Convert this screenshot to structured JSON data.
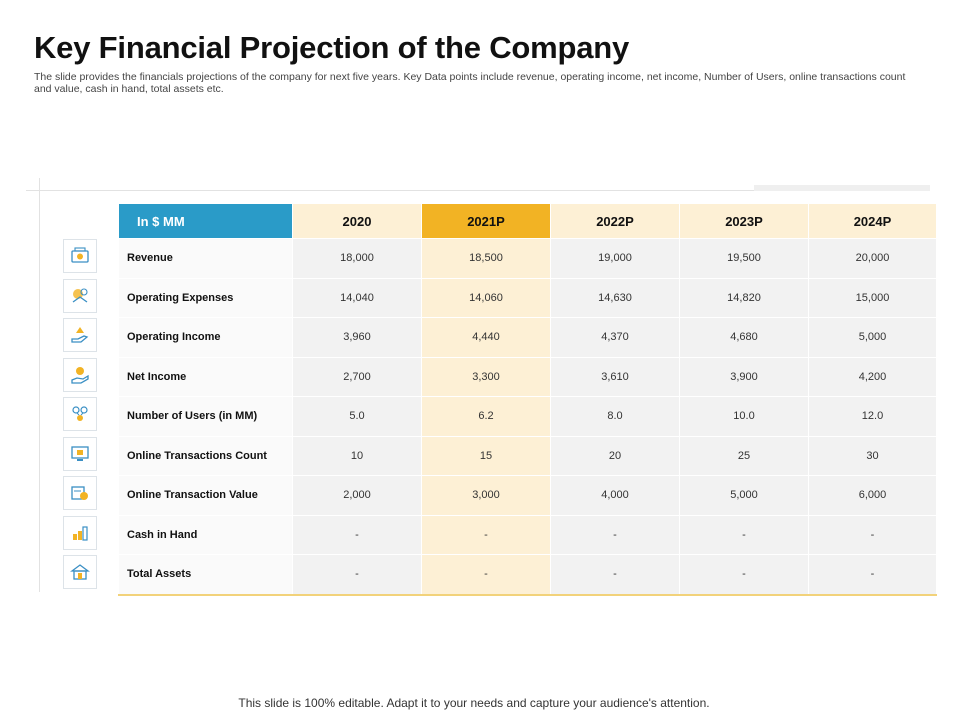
{
  "title": "Key Financial Projection of the Company",
  "subtitle": "The slide provides the financials projections of the company for next five years. Key Data points include revenue, operating income, net income, Number of Users, online transactions count and value, cash in hand, total assets etc.",
  "table": {
    "unit_label": "In $ MM",
    "highlight_column": "2021P",
    "columns": [
      "2020",
      "2021P",
      "2022P",
      "2023P",
      "2024P"
    ],
    "rows": [
      {
        "label": "Revenue",
        "icon": "money-icon",
        "values": [
          "18,000",
          "18,500",
          "19,000",
          "19,500",
          "20,000"
        ]
      },
      {
        "label": "Operating Expenses",
        "icon": "expenses-icon",
        "values": [
          "14,040",
          "14,060",
          "14,630",
          "14,820",
          "15,000"
        ]
      },
      {
        "label": "Operating Income",
        "icon": "income-hand-icon",
        "values": [
          "3,960",
          "4,440",
          "4,370",
          "4,680",
          "5,000"
        ]
      },
      {
        "label": "Net Income",
        "icon": "coin-hand-icon",
        "values": [
          "2,700",
          "3,300",
          "3,610",
          "3,900",
          "4,200"
        ]
      },
      {
        "label": "Number of Users (in MM)",
        "icon": "users-network-icon",
        "values": [
          "5.0",
          "6.2",
          "8.0",
          "10.0",
          "12.0"
        ]
      },
      {
        "label": "Online Transactions Count",
        "icon": "online-transaction-icon",
        "values": [
          "10",
          "15",
          "20",
          "25",
          "30"
        ]
      },
      {
        "label": "Online Transaction Value",
        "icon": "transaction-value-icon",
        "values": [
          "2,000",
          "3,000",
          "4,000",
          "5,000",
          "6,000"
        ]
      },
      {
        "label": "Cash in Hand",
        "icon": "cash-stack-icon",
        "values": [
          "-",
          "-",
          "-",
          "-",
          "-"
        ]
      },
      {
        "label": "Total Assets",
        "icon": "assets-building-icon",
        "values": [
          "-",
          "-",
          "-",
          "-",
          "-"
        ]
      }
    ]
  },
  "footer": "This slide is 100% editable. Adapt it to your needs and capture your audience's attention.",
  "colors": {
    "header_blue": "#2a9bc8",
    "highlight_gold": "#f2b324",
    "year_cream": "#fdf0d5"
  }
}
